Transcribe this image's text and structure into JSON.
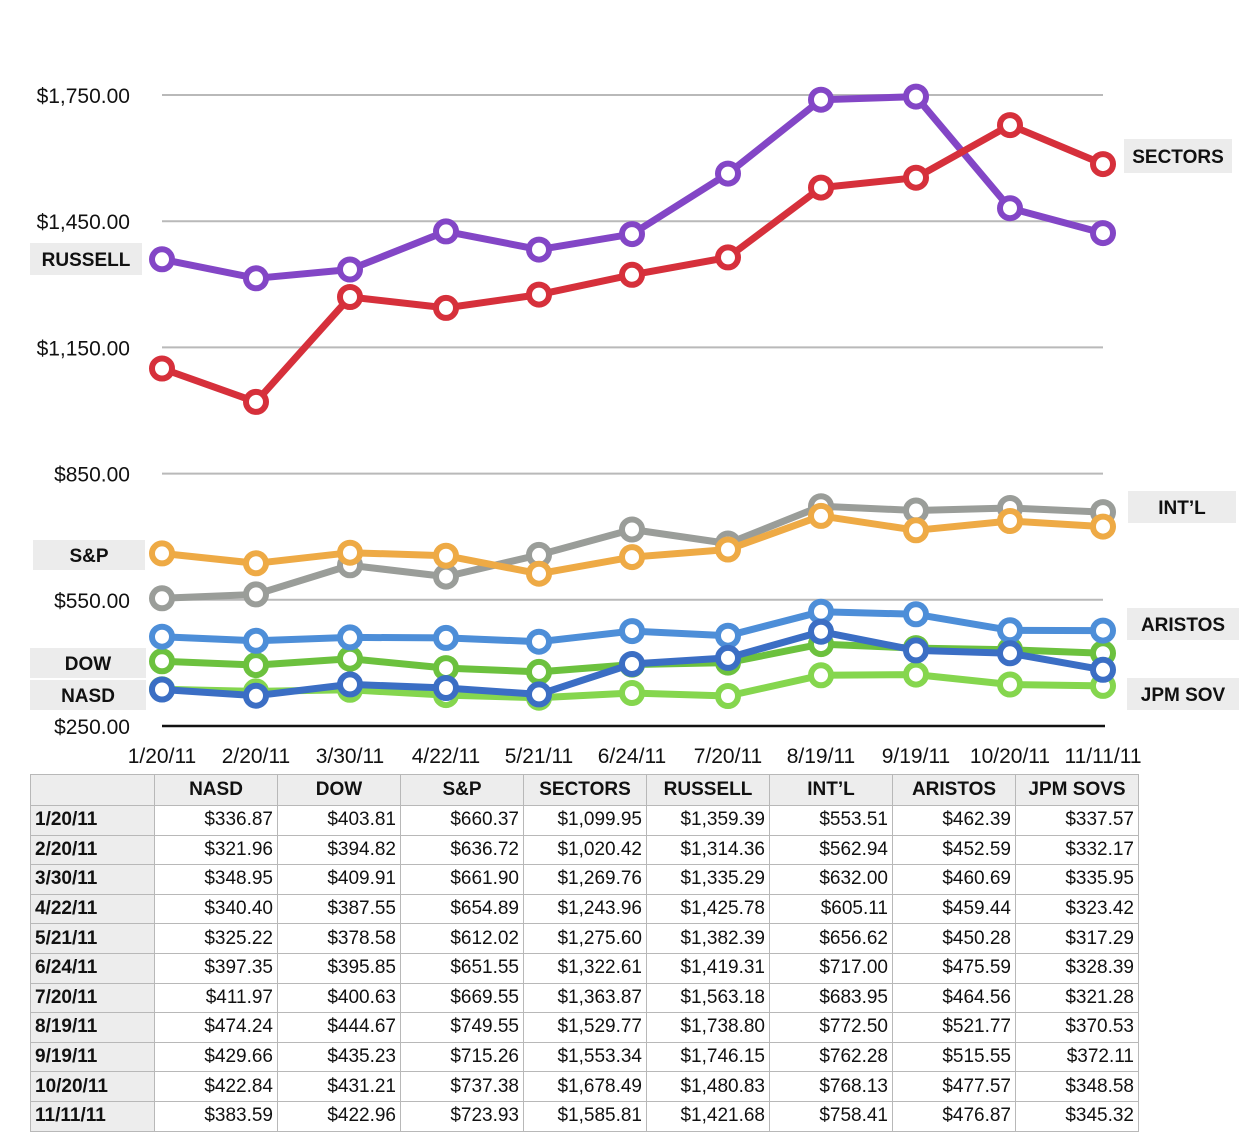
{
  "chart_data": {
    "type": "line",
    "title": "",
    "xlabel": "",
    "ylabel": "",
    "ylim": [
      250,
      1750
    ],
    "yticks": [
      "$250.00",
      "$550.00",
      "$850.00",
      "$1,150.00",
      "$1,450.00",
      "$1,750.00"
    ],
    "ytick_values": [
      250,
      550,
      850,
      1150,
      1450,
      1750
    ],
    "grid": true,
    "x": [
      "1/20/11",
      "2/20/11",
      "3/30/11",
      "4/22/11",
      "5/21/11",
      "6/24/11",
      "7/20/11",
      "8/19/11",
      "9/19/11",
      "10/20/11",
      "11/11/11"
    ],
    "series": [
      {
        "name": "NASD",
        "color": "#3b6ec4",
        "label_side": "left",
        "values": [
          336.87,
          321.96,
          348.95,
          340.4,
          325.22,
          397.35,
          411.97,
          474.24,
          429.66,
          422.84,
          383.59
        ]
      },
      {
        "name": "DOW",
        "color": "#6cc13e",
        "label_side": "left",
        "values": [
          403.81,
          394.82,
          409.91,
          387.55,
          378.58,
          395.85,
          400.63,
          444.67,
          435.23,
          431.21,
          422.96
        ]
      },
      {
        "name": "S&P",
        "color": "#eeaa45",
        "label_side": "left",
        "values": [
          660.37,
          636.72,
          661.9,
          654.89,
          612.02,
          651.55,
          669.55,
          749.55,
          715.26,
          737.38,
          723.93
        ]
      },
      {
        "name": "SECTORS",
        "color": "#d6303b",
        "label_side": "right",
        "values": [
          1099.95,
          1020.42,
          1269.76,
          1243.96,
          1275.6,
          1322.61,
          1363.87,
          1529.77,
          1553.34,
          1678.49,
          1585.81
        ]
      },
      {
        "name": "RUSSELL",
        "color": "#8346c6",
        "label_side": "left",
        "values": [
          1359.39,
          1314.36,
          1335.29,
          1425.78,
          1382.39,
          1419.31,
          1563.18,
          1738.8,
          1746.15,
          1480.83,
          1421.68
        ]
      },
      {
        "name": "INT’L",
        "color": "#9a9d99",
        "label_side": "right",
        "values": [
          553.51,
          562.94,
          632.0,
          605.11,
          656.62,
          717.0,
          683.95,
          772.5,
          762.28,
          768.13,
          758.41
        ]
      },
      {
        "name": "ARISTOS",
        "color": "#4d8ed8",
        "label_side": "right",
        "values": [
          462.39,
          452.59,
          460.69,
          459.44,
          450.28,
          475.59,
          464.56,
          521.77,
          515.55,
          477.57,
          476.87
        ]
      },
      {
        "name": "JPM SOV",
        "color": "#85d64e",
        "label_side": "right",
        "values": [
          337.57,
          332.17,
          335.95,
          323.42,
          317.29,
          328.39,
          321.28,
          370.53,
          372.11,
          348.58,
          345.32
        ]
      }
    ]
  },
  "table": {
    "headers": [
      "",
      "NASD",
      "DOW",
      "S&P",
      "SECTORS",
      "RUSSELL",
      "INT’L",
      "ARISTOS",
      "JPM SOVS"
    ],
    "rows": [
      [
        "1/20/11",
        "$336.87",
        "$403.81",
        "$660.37",
        "$1,099.95",
        "$1,359.39",
        "$553.51",
        "$462.39",
        "$337.57"
      ],
      [
        "2/20/11",
        "$321.96",
        "$394.82",
        "$636.72",
        "$1,020.42",
        "$1,314.36",
        "$562.94",
        "$452.59",
        "$332.17"
      ],
      [
        "3/30/11",
        "$348.95",
        "$409.91",
        "$661.90",
        "$1,269.76",
        "$1,335.29",
        "$632.00",
        "$460.69",
        "$335.95"
      ],
      [
        "4/22/11",
        "$340.40",
        "$387.55",
        "$654.89",
        "$1,243.96",
        "$1,425.78",
        "$605.11",
        "$459.44",
        "$323.42"
      ],
      [
        "5/21/11",
        "$325.22",
        "$378.58",
        "$612.02",
        "$1,275.60",
        "$1,382.39",
        "$656.62",
        "$450.28",
        "$317.29"
      ],
      [
        "6/24/11",
        "$397.35",
        "$395.85",
        "$651.55",
        "$1,322.61",
        "$1,419.31",
        "$717.00",
        "$475.59",
        "$328.39"
      ],
      [
        "7/20/11",
        "$411.97",
        "$400.63",
        "$669.55",
        "$1,363.87",
        "$1,563.18",
        "$683.95",
        "$464.56",
        "$321.28"
      ],
      [
        "8/19/11",
        "$474.24",
        "$444.67",
        "$749.55",
        "$1,529.77",
        "$1,738.80",
        "$772.50",
        "$521.77",
        "$370.53"
      ],
      [
        "9/19/11",
        "$429.66",
        "$435.23",
        "$715.26",
        "$1,553.34",
        "$1,746.15",
        "$762.28",
        "$515.55",
        "$372.11"
      ],
      [
        "10/20/11",
        "$422.84",
        "$431.21",
        "$737.38",
        "$1,678.49",
        "$1,480.83",
        "$768.13",
        "$477.57",
        "$348.58"
      ],
      [
        "11/11/11",
        "$383.59",
        "$422.96",
        "$723.93",
        "$1,585.81",
        "$1,421.68",
        "$758.41",
        "$476.87",
        "$345.32"
      ]
    ]
  }
}
